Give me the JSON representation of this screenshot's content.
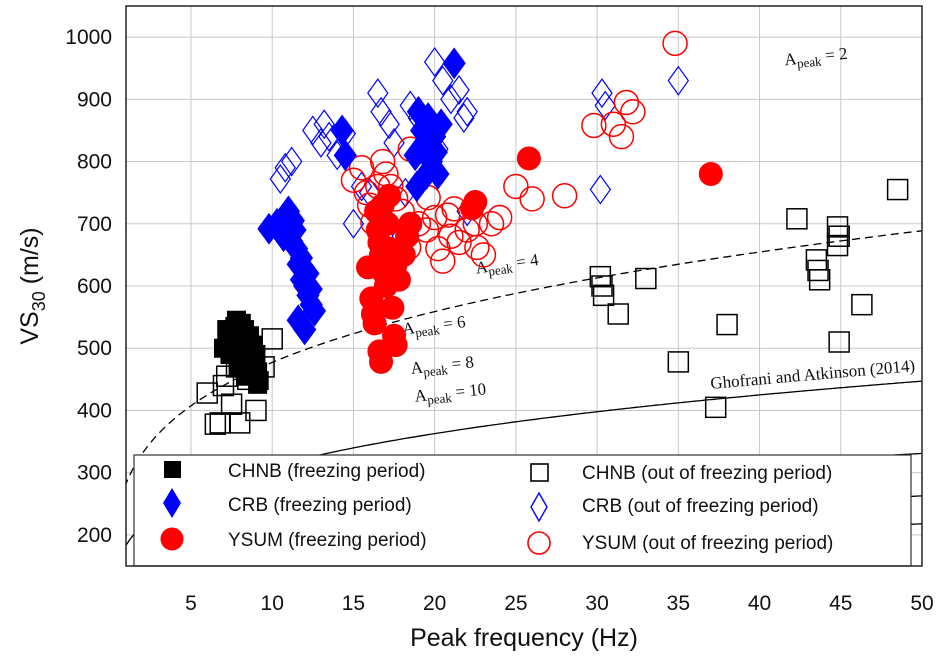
{
  "chart_data": {
    "type": "scatter",
    "title": "",
    "xlabel": "Peak frequency (Hz)",
    "ylabel": {
      "main": "VS",
      "sub": "30",
      "unit": " (m/s)"
    },
    "xlim": [
      1,
      50
    ],
    "ylim": [
      150,
      1050
    ],
    "xticks": [
      5,
      10,
      15,
      20,
      25,
      30,
      35,
      40,
      45,
      50
    ],
    "yticks": [
      200,
      300,
      400,
      500,
      600,
      700,
      800,
      900,
      1000
    ],
    "grid": true,
    "legend_position": "bottom",
    "curves": [
      {
        "name": "Apeak = 2",
        "prefix": "A",
        "sub": "peak",
        "suffix": " = 2",
        "A": 2,
        "style": "dashed",
        "label_x": 43.5,
        "label_y": 960,
        "label_angle": -6
      },
      {
        "name": "Apeak = 4",
        "prefix": "A",
        "sub": "peak",
        "suffix": " = 4",
        "A": 4,
        "style": "solid",
        "label_x": 24.5,
        "label_y": 627,
        "label_angle": -8
      },
      {
        "name": "Apeak = 6",
        "prefix": "A",
        "sub": "peak",
        "suffix": " = 6",
        "A": 6,
        "style": "solid",
        "label_x": 20,
        "label_y": 528,
        "label_angle": -7
      },
      {
        "name": "Apeak = 8",
        "prefix": "A",
        "sub": "peak",
        "suffix": " = 8",
        "A": 8,
        "style": "solid",
        "label_x": 20.5,
        "label_y": 464,
        "label_angle": -6
      },
      {
        "name": "Apeak = 10",
        "prefix": "A",
        "sub": "peak",
        "suffix": " = 10",
        "A": 10,
        "style": "solid",
        "label_x": 21,
        "label_y": 420,
        "label_angle": -6
      }
    ],
    "annotation": {
      "text": "Ghofrani and Atkinson (2014)",
      "x": 43.3,
      "y": 449,
      "angle": -5
    },
    "series": [
      {
        "name": "CHNB (freezing period)",
        "marker": "square",
        "filled": true,
        "color": "#000000",
        "points": [
          [
            7,
            500
          ],
          [
            7.2,
            530
          ],
          [
            7.5,
            520
          ],
          [
            7.8,
            545
          ],
          [
            8,
            510
          ],
          [
            8.1,
            540
          ],
          [
            8.3,
            530
          ],
          [
            8.5,
            500
          ],
          [
            8.7,
            485
          ],
          [
            8.9,
            475
          ],
          [
            9.1,
            462
          ],
          [
            9.2,
            448
          ],
          [
            7.4,
            490
          ],
          [
            7.9,
            470
          ],
          [
            8.2,
            495
          ],
          [
            7.6,
            505
          ],
          [
            8.4,
            455
          ],
          [
            9,
            490
          ],
          [
            8,
            480
          ],
          [
            7.3,
            515
          ],
          [
            8.8,
            505
          ],
          [
            7.7,
            535
          ],
          [
            8.6,
            520
          ],
          [
            9.1,
            442
          ],
          [
            8.2,
            512
          ],
          [
            7.9,
            498
          ]
        ]
      },
      {
        "name": "CRB (freezing period)",
        "marker": "diamond",
        "filled": true,
        "color": "#0000ff",
        "points": [
          [
            9.8,
            692
          ],
          [
            10.3,
            700
          ],
          [
            10.7,
            680
          ],
          [
            11,
            720
          ],
          [
            11.3,
            705
          ],
          [
            11.5,
            660
          ],
          [
            11.6,
            635
          ],
          [
            11.8,
            610
          ],
          [
            12,
            600
          ],
          [
            12.2,
            585
          ],
          [
            12.4,
            570
          ],
          [
            12.6,
            560
          ],
          [
            11.6,
            545
          ],
          [
            12,
            530
          ],
          [
            11.4,
            690
          ],
          [
            11.8,
            645
          ],
          [
            12.2,
            620
          ],
          [
            12.4,
            595
          ],
          [
            11.2,
            672
          ],
          [
            14.3,
            850
          ],
          [
            14.5,
            810
          ],
          [
            18.8,
            810
          ],
          [
            19,
            880
          ],
          [
            19.2,
            850
          ],
          [
            19.4,
            830
          ],
          [
            19.6,
            870
          ],
          [
            19.8,
            800
          ],
          [
            20,
            840
          ],
          [
            20.2,
            780
          ],
          [
            20.4,
            860
          ],
          [
            19.5,
            780
          ],
          [
            18.9,
            760
          ],
          [
            21.2,
            958
          ],
          [
            19.1,
            820
          ],
          [
            19.7,
            845
          ],
          [
            20.1,
            815
          ]
        ]
      },
      {
        "name": "YSUM (freezing period)",
        "marker": "circle",
        "filled": true,
        "color": "#ff0000",
        "points": [
          [
            15.9,
            630
          ],
          [
            16.1,
            580
          ],
          [
            16.2,
            555
          ],
          [
            16.3,
            540
          ],
          [
            16.4,
            720
          ],
          [
            16.5,
            690
          ],
          [
            16.6,
            670
          ],
          [
            16.7,
            650
          ],
          [
            16.8,
            640
          ],
          [
            16.9,
            620
          ],
          [
            17,
            600
          ],
          [
            17.1,
            700
          ],
          [
            17.2,
            660
          ],
          [
            17.3,
            610
          ],
          [
            17.4,
            565
          ],
          [
            16.6,
            495
          ],
          [
            16.7,
            478
          ],
          [
            17.5,
            520
          ],
          [
            17.6,
            505
          ],
          [
            17.8,
            610
          ],
          [
            18.1,
            650
          ],
          [
            18.3,
            680
          ],
          [
            18.5,
            700
          ],
          [
            17.2,
            745
          ],
          [
            16.8,
            730
          ],
          [
            17.6,
            635
          ],
          [
            22.3,
            725
          ],
          [
            22.5,
            735
          ],
          [
            25.8,
            805
          ],
          [
            37,
            780
          ]
        ]
      },
      {
        "name": "CHNB (out of freezing period)",
        "marker": "square",
        "filled": false,
        "color": "#000000",
        "points": [
          [
            6,
            428
          ],
          [
            6.5,
            378
          ],
          [
            6.8,
            380
          ],
          [
            7,
            440
          ],
          [
            7.2,
            455
          ],
          [
            7.5,
            410
          ],
          [
            7.8,
            470
          ],
          [
            8,
            380
          ],
          [
            8.5,
            450
          ],
          [
            9,
            400
          ],
          [
            9.5,
            470
          ],
          [
            10,
            515
          ],
          [
            30.2,
            615
          ],
          [
            30.3,
            600
          ],
          [
            30.4,
            585
          ],
          [
            31.3,
            555
          ],
          [
            33,
            612
          ],
          [
            35,
            478
          ],
          [
            38,
            538
          ],
          [
            37.3,
            405
          ],
          [
            42.3,
            708
          ],
          [
            43.5,
            642
          ],
          [
            43.6,
            625
          ],
          [
            43.7,
            610
          ],
          [
            44.8,
            695
          ],
          [
            44.9,
            680
          ],
          [
            44.8,
            665
          ],
          [
            44.9,
            510
          ],
          [
            46.3,
            570
          ],
          [
            48.5,
            755
          ]
        ]
      },
      {
        "name": "CRB (out of freezing period)",
        "marker": "diamond",
        "filled": false,
        "color": "#0000ff",
        "points": [
          [
            10.5,
            772
          ],
          [
            10.8,
            790
          ],
          [
            11.2,
            800
          ],
          [
            12.5,
            850
          ],
          [
            13,
            830
          ],
          [
            13.2,
            860
          ],
          [
            13.5,
            840
          ],
          [
            14,
            810
          ],
          [
            14.5,
            845
          ],
          [
            15,
            700
          ],
          [
            15.5,
            760
          ],
          [
            16,
            750
          ],
          [
            16.5,
            910
          ],
          [
            16.7,
            880
          ],
          [
            17.2,
            860
          ],
          [
            17.5,
            830
          ],
          [
            18,
            680
          ],
          [
            18.2,
            750
          ],
          [
            18.5,
            890
          ],
          [
            19,
            870
          ],
          [
            19.5,
            840
          ],
          [
            20,
            960
          ],
          [
            20.5,
            930
          ],
          [
            21,
            900
          ],
          [
            21.5,
            915
          ],
          [
            22,
            880
          ],
          [
            20.2,
            820
          ],
          [
            21.8,
            870
          ],
          [
            30.2,
            755
          ],
          [
            30.5,
            890
          ],
          [
            30.3,
            910
          ],
          [
            35,
            930
          ],
          [
            22,
            720
          ]
        ]
      },
      {
        "name": "YSUM (out of freezing period)",
        "marker": "circle",
        "filled": false,
        "color": "#ff0000",
        "points": [
          [
            15,
            770
          ],
          [
            15.5,
            790
          ],
          [
            15.8,
            750
          ],
          [
            16,
            730
          ],
          [
            16.5,
            760
          ],
          [
            16.8,
            800
          ],
          [
            17,
            780
          ],
          [
            17.3,
            760
          ],
          [
            17.6,
            740
          ],
          [
            18,
            720
          ],
          [
            18.5,
            820
          ],
          [
            19,
            700
          ],
          [
            19.5,
            690
          ],
          [
            20,
            710
          ],
          [
            20.2,
            660
          ],
          [
            20.5,
            640
          ],
          [
            21,
            680
          ],
          [
            21.5,
            670
          ],
          [
            22,
            690
          ],
          [
            22.5,
            700
          ],
          [
            23,
            650
          ],
          [
            23.5,
            700
          ],
          [
            24,
            710
          ],
          [
            25,
            760
          ],
          [
            26,
            740
          ],
          [
            28,
            745
          ],
          [
            29.8,
            858
          ],
          [
            31,
            860
          ],
          [
            31.5,
            840
          ],
          [
            31.8,
            895
          ],
          [
            32.2,
            880
          ],
          [
            34.8,
            990
          ],
          [
            16.2,
            702
          ],
          [
            17.8,
            683
          ],
          [
            19.6,
            742
          ],
          [
            21.2,
            724
          ],
          [
            22.6,
            662
          ],
          [
            18.4,
            662
          ],
          [
            20.8,
            714
          ]
        ]
      }
    ]
  }
}
